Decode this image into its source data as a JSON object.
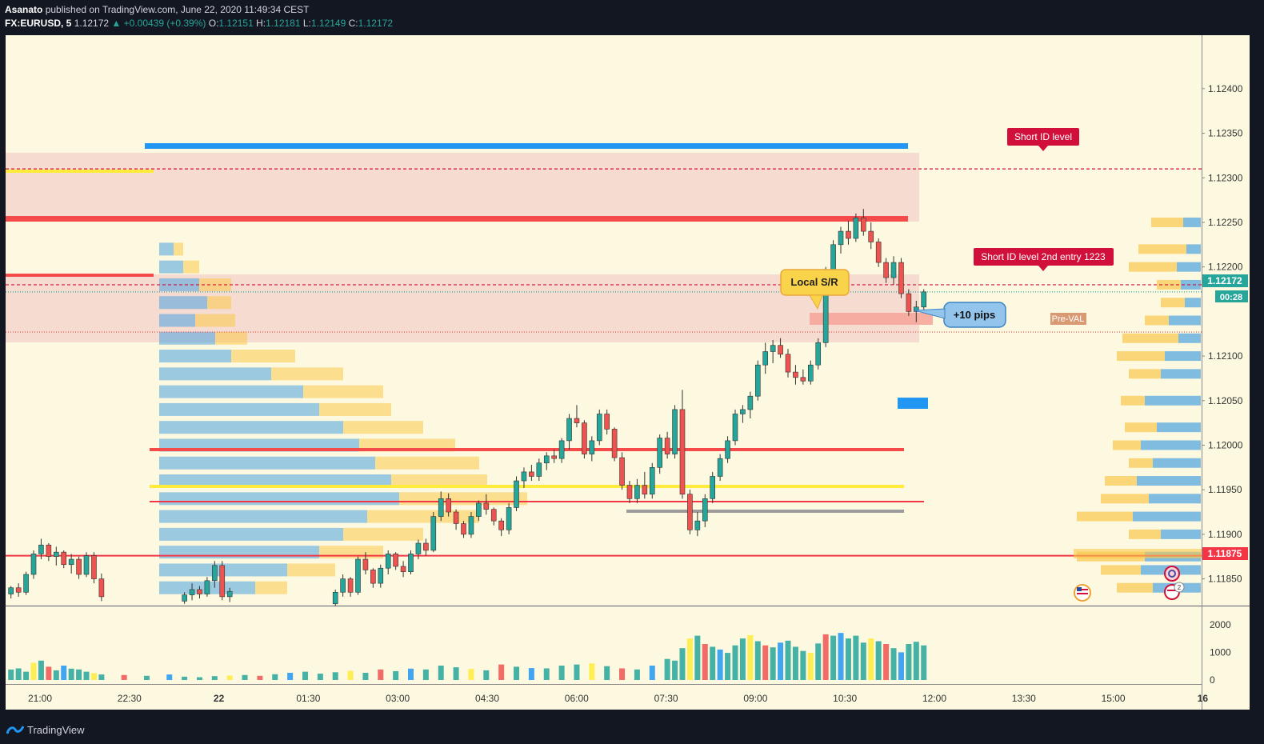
{
  "header": {
    "author": "Asanato",
    "published_text": "published on TradingView.com, June 22, 2020 11:49:34 CEST",
    "symbol": "FX:EURUSD, 5",
    "last": "1.12172",
    "change": "▲ +0.00439 (+0.39%)",
    "open_label": "O:",
    "open": "1.12151",
    "high_label": "H:",
    "high": "1.12181",
    "low_label": "L:",
    "low": "1.12149",
    "close_label": "C:",
    "close": "1.12172"
  },
  "footer": {
    "brand": "TradingView"
  },
  "colors": {
    "background": "#fdf9e0",
    "up": "#26a69a",
    "down": "#ef5350",
    "blue_line": "#2196f3",
    "red_line": "#f23645",
    "yellow_line": "#ffeb3b",
    "zone": "#f5d6cc",
    "label_red": "#d0103a",
    "callout_yellow": "#f9d34a",
    "callout_blue": "#93c5ec"
  },
  "chart_data": {
    "type": "candlestick",
    "symbol": "FX:EURUSD",
    "timeframe": "5",
    "x_ticks": [
      "21:00",
      "22:30",
      "22",
      "01:30",
      "03:00",
      "04:30",
      "06:00",
      "07:30",
      "09:00",
      "10:30",
      "12:00",
      "13:30",
      "15:00",
      "16"
    ],
    "y_ticks": [
      "1.12400",
      "1.12350",
      "1.12300",
      "1.12250",
      "1.12200",
      "1.12100",
      "1.12050",
      "1.12000",
      "1.11950",
      "1.11900",
      "1.11850"
    ],
    "ylim": [
      1.1182,
      1.1246
    ],
    "price_label": "1.12172",
    "countdown": "00:28",
    "level_label": "1.11875",
    "volume_ticks": [
      "2000",
      "1000",
      "0"
    ],
    "volume_ylim": [
      0,
      2600
    ],
    "levels": [
      {
        "price": 1.1231,
        "style": "dashed",
        "color": "#d0103a"
      },
      {
        "price": 1.1218,
        "style": "dashed",
        "color": "#d0103a"
      },
      {
        "price": 1.12172,
        "style": "dotted",
        "color": "#26a69a"
      },
      {
        "price": 1.12127,
        "style": "dotted",
        "color": "#ef5350"
      },
      {
        "price": 1.11876,
        "style": "solid",
        "color": "#f23645"
      }
    ],
    "annotations": [
      {
        "text": "Short ID level"
      },
      {
        "text": "Short ID level 2nd entry 1223"
      },
      {
        "text": "Local S/R"
      },
      {
        "text": "+10 pips"
      },
      {
        "text": "Pre-VAL"
      }
    ],
    "candles": [
      [
        0.5,
        1.11833,
        1.11842,
        1.11828,
        1.1184
      ],
      [
        1.5,
        1.1184,
        1.11845,
        1.1183,
        1.11835
      ],
      [
        2.5,
        1.11835,
        1.11858,
        1.11832,
        1.11855
      ],
      [
        3.5,
        1.11855,
        1.11882,
        1.1185,
        1.11878
      ],
      [
        4.5,
        1.11878,
        1.11895,
        1.11872,
        1.11888
      ],
      [
        5.5,
        1.11888,
        1.1189,
        1.1187,
        1.11875
      ],
      [
        6.5,
        1.11875,
        1.11886,
        1.11865,
        1.1188
      ],
      [
        7.5,
        1.1188,
        1.11882,
        1.11862,
        1.11866
      ],
      [
        8.5,
        1.11866,
        1.11878,
        1.11856,
        1.11872
      ],
      [
        9.5,
        1.11872,
        1.11875,
        1.1185,
        1.11855
      ],
      [
        10.5,
        1.11855,
        1.1188,
        1.11852,
        1.11876
      ],
      [
        11.5,
        1.11876,
        1.1188,
        1.11845,
        1.1185
      ],
      [
        12.5,
        1.1185,
        1.11856,
        1.11825,
        1.1183
      ],
      [
        23.5,
        1.11825,
        1.11835,
        1.11822,
        1.11832
      ],
      [
        24.5,
        1.11832,
        1.11845,
        1.11826,
        1.11838
      ],
      [
        25.5,
        1.11838,
        1.11842,
        1.11828,
        1.11833
      ],
      [
        26.5,
        1.11833,
        1.11852,
        1.1183,
        1.11848
      ],
      [
        27.5,
        1.11848,
        1.1187,
        1.1184,
        1.11865
      ],
      [
        28.5,
        1.11865,
        1.1187,
        1.11826,
        1.1183
      ],
      [
        29.5,
        1.1183,
        1.1184,
        1.11824,
        1.11836
      ],
      [
        43.5,
        1.11822,
        1.11838,
        1.1182,
        1.11835
      ],
      [
        44.5,
        1.11835,
        1.11855,
        1.1183,
        1.1185
      ],
      [
        45.5,
        1.1185,
        1.11852,
        1.1183,
        1.11835
      ],
      [
        46.5,
        1.11835,
        1.11875,
        1.11832,
        1.11872
      ],
      [
        47.5,
        1.11872,
        1.1188,
        1.11855,
        1.1186
      ],
      [
        48.5,
        1.1186,
        1.11862,
        1.1184,
        1.11845
      ],
      [
        49.5,
        1.11845,
        1.11866,
        1.1184,
        1.11862
      ],
      [
        50.5,
        1.11862,
        1.11882,
        1.11855,
        1.11878
      ],
      [
        51.5,
        1.11878,
        1.1188,
        1.1186,
        1.11864
      ],
      [
        52.5,
        1.11864,
        1.1187,
        1.11852,
        1.11858
      ],
      [
        53.5,
        1.11858,
        1.11882,
        1.11855,
        1.11878
      ],
      [
        54.5,
        1.11878,
        1.11894,
        1.11872,
        1.1189
      ],
      [
        55.5,
        1.1189,
        1.11895,
        1.11876,
        1.11882
      ],
      [
        56.5,
        1.11882,
        1.11925,
        1.1188,
        1.1192
      ],
      [
        57.5,
        1.1192,
        1.11948,
        1.11915,
        1.1194
      ],
      [
        58.5,
        1.1194,
        1.11946,
        1.1192,
        1.11925
      ],
      [
        59.5,
        1.11925,
        1.11928,
        1.11905,
        1.11912
      ],
      [
        60.5,
        1.11912,
        1.11915,
        1.11896,
        1.119
      ],
      [
        61.5,
        1.119,
        1.11925,
        1.11896,
        1.1192
      ],
      [
        62.5,
        1.1192,
        1.11938,
        1.11915,
        1.11935
      ],
      [
        63.5,
        1.11935,
        1.11945,
        1.11922,
        1.11928
      ],
      [
        64.5,
        1.11928,
        1.1193,
        1.1191,
        1.11915
      ],
      [
        65.5,
        1.11915,
        1.11918,
        1.11898,
        1.11905
      ],
      [
        66.5,
        1.11905,
        1.11935,
        1.119,
        1.1193
      ],
      [
        67.5,
        1.1193,
        1.11965,
        1.11926,
        1.1196
      ],
      [
        68.5,
        1.1196,
        1.11975,
        1.11952,
        1.1197
      ],
      [
        69.5,
        1.1197,
        1.11978,
        1.1196,
        1.11965
      ],
      [
        70.5,
        1.11965,
        1.11985,
        1.1196,
        1.1198
      ],
      [
        71.5,
        1.1198,
        1.11992,
        1.11972,
        1.11988
      ],
      [
        72.5,
        1.11988,
        1.11995,
        1.1198,
        1.11985
      ],
      [
        73.5,
        1.11985,
        1.12008,
        1.1198,
        1.12005
      ],
      [
        74.5,
        1.12005,
        1.12035,
        1.11995,
        1.1203
      ],
      [
        75.5,
        1.1203,
        1.12045,
        1.1202,
        1.12025
      ],
      [
        76.5,
        1.12025,
        1.12028,
        1.11985,
        1.1199
      ],
      [
        77.5,
        1.1199,
        1.1201,
        1.11982,
        1.12005
      ],
      [
        78.5,
        1.12005,
        1.1204,
        1.12,
        1.12035
      ],
      [
        79.5,
        1.12035,
        1.1204,
        1.12012,
        1.12018
      ],
      [
        80.5,
        1.12018,
        1.1202,
        1.11982,
        1.11986
      ],
      [
        81.5,
        1.11986,
        1.11992,
        1.1195,
        1.11955
      ],
      [
        82.5,
        1.11955,
        1.1196,
        1.11935,
        1.1194
      ],
      [
        83.5,
        1.1194,
        1.11962,
        1.11935,
        1.11955
      ],
      [
        84.5,
        1.11955,
        1.1197,
        1.1194,
        1.11945
      ],
      [
        85.5,
        1.11945,
        1.1198,
        1.1194,
        1.11975
      ],
      [
        86.5,
        1.11975,
        1.12012,
        1.11968,
        1.12008
      ],
      [
        87.5,
        1.12008,
        1.12015,
        1.11985,
        1.1199
      ],
      [
        88.5,
        1.1199,
        1.12045,
        1.11985,
        1.1204
      ],
      [
        89.5,
        1.1204,
        1.12062,
        1.1194,
        1.11945
      ],
      [
        90.5,
        1.11945,
        1.1195,
        1.119,
        1.11905
      ],
      [
        91.5,
        1.11905,
        1.11925,
        1.11898,
        1.11915
      ],
      [
        92.5,
        1.11915,
        1.11945,
        1.11908,
        1.1194
      ],
      [
        93.5,
        1.1194,
        1.1197,
        1.11935,
        1.11965
      ],
      [
        94.5,
        1.11965,
        1.1199,
        1.1196,
        1.11985
      ],
      [
        95.5,
        1.11985,
        1.1201,
        1.1198,
        1.12005
      ],
      [
        96.5,
        1.12005,
        1.1204,
        1.12,
        1.12035
      ],
      [
        97.5,
        1.12035,
        1.12045,
        1.12025,
        1.1204
      ],
      [
        98.5,
        1.1204,
        1.1206,
        1.1203,
        1.12055
      ],
      [
        99.5,
        1.12055,
        1.12095,
        1.1205,
        1.1209
      ],
      [
        100.5,
        1.1209,
        1.12115,
        1.1208,
        1.12105
      ],
      [
        101.5,
        1.12105,
        1.12118,
        1.12092,
        1.12112
      ],
      [
        102.5,
        1.12112,
        1.1212,
        1.12098,
        1.12102
      ],
      [
        103.5,
        1.12102,
        1.12108,
        1.12076,
        1.12082
      ],
      [
        104.5,
        1.12082,
        1.1209,
        1.12068,
        1.12076
      ],
      [
        105.5,
        1.12076,
        1.12085,
        1.12068,
        1.12072
      ],
      [
        106.5,
        1.12072,
        1.12095,
        1.12068,
        1.1209
      ],
      [
        107.5,
        1.1209,
        1.1212,
        1.12085,
        1.12115
      ],
      [
        108.5,
        1.12115,
        1.122,
        1.1211,
        1.12195
      ],
      [
        109.5,
        1.12195,
        1.1223,
        1.12185,
        1.12225
      ],
      [
        110.5,
        1.12225,
        1.12245,
        1.12215,
        1.1224
      ],
      [
        111.5,
        1.1224,
        1.12252,
        1.12225,
        1.12232
      ],
      [
        112.5,
        1.12232,
        1.1226,
        1.12228,
        1.12255
      ],
      [
        113.5,
        1.12255,
        1.12265,
        1.12235,
        1.1224
      ],
      [
        114.5,
        1.1224,
        1.1225,
        1.1222,
        1.12228
      ],
      [
        115.5,
        1.12228,
        1.12232,
        1.122,
        1.12205
      ],
      [
        116.5,
        1.12205,
        1.1221,
        1.12182,
        1.12188
      ],
      [
        117.5,
        1.12188,
        1.12212,
        1.1218,
        1.12205
      ],
      [
        118.5,
        1.12205,
        1.1221,
        1.12165,
        1.1217
      ],
      [
        119.5,
        1.1217,
        1.12175,
        1.12145,
        1.1215
      ],
      [
        120.5,
        1.1215,
        1.12162,
        1.12138,
        1.12155
      ],
      [
        121.5,
        1.12155,
        1.12175,
        1.1215,
        1.12172
      ]
    ],
    "volume": [
      [
        0.5,
        380
      ],
      [
        1.5,
        420
      ],
      [
        2.5,
        300
      ],
      [
        3.5,
        620
      ],
      [
        4.5,
        700
      ],
      [
        5.5,
        480
      ],
      [
        6.5,
        350
      ],
      [
        7.5,
        520
      ],
      [
        8.5,
        410
      ],
      [
        9.5,
        380
      ],
      [
        10.5,
        300
      ],
      [
        11.5,
        250
      ],
      [
        12.5,
        200
      ],
      [
        15.5,
        180
      ],
      [
        18.5,
        150
      ],
      [
        21.5,
        200
      ],
      [
        23.5,
        120
      ],
      [
        25.5,
        100
      ],
      [
        27.5,
        140
      ],
      [
        29.5,
        160
      ],
      [
        31.5,
        180
      ],
      [
        33.5,
        150
      ],
      [
        35.5,
        210
      ],
      [
        37.5,
        260
      ],
      [
        39.5,
        300
      ],
      [
        41.5,
        230
      ],
      [
        43.5,
        280
      ],
      [
        45.5,
        330
      ],
      [
        47.5,
        260
      ],
      [
        49.5,
        380
      ],
      [
        51.5,
        320
      ],
      [
        53.5,
        410
      ],
      [
        55.5,
        380
      ],
      [
        57.5,
        520
      ],
      [
        59.5,
        460
      ],
      [
        61.5,
        400
      ],
      [
        63.5,
        350
      ],
      [
        65.5,
        560
      ],
      [
        67.5,
        480
      ],
      [
        69.5,
        430
      ],
      [
        71.5,
        420
      ],
      [
        73.5,
        520
      ],
      [
        75.5,
        560
      ],
      [
        77.5,
        600
      ],
      [
        79.5,
        500
      ],
      [
        81.5,
        420
      ],
      [
        83.5,
        380
      ],
      [
        85.5,
        520
      ],
      [
        87.5,
        760
      ],
      [
        88.5,
        700
      ],
      [
        89.5,
        1150
      ],
      [
        90.5,
        1500
      ],
      [
        91.5,
        1600
      ],
      [
        92.5,
        1300
      ],
      [
        93.5,
        1200
      ],
      [
        94.5,
        1100
      ],
      [
        95.5,
        980
      ],
      [
        96.5,
        1250
      ],
      [
        97.5,
        1500
      ],
      [
        98.5,
        1620
      ],
      [
        99.5,
        1400
      ],
      [
        100.5,
        1250
      ],
      [
        101.5,
        1180
      ],
      [
        102.5,
        1350
      ],
      [
        103.5,
        1420
      ],
      [
        104.5,
        1200
      ],
      [
        105.5,
        1050
      ],
      [
        106.5,
        980
      ],
      [
        107.5,
        1320
      ],
      [
        108.5,
        1650
      ],
      [
        109.5,
        1600
      ],
      [
        110.5,
        1700
      ],
      [
        111.5,
        1500
      ],
      [
        112.5,
        1600
      ],
      [
        113.5,
        1350
      ],
      [
        114.5,
        1500
      ],
      [
        115.5,
        1400
      ],
      [
        116.5,
        1300
      ],
      [
        117.5,
        1150
      ],
      [
        118.5,
        1000
      ],
      [
        119.5,
        1300
      ],
      [
        120.5,
        1380
      ],
      [
        121.5,
        1250
      ]
    ],
    "volume_profile_left": [
      [
        1.1222,
        18,
        12
      ],
      [
        1.122,
        30,
        20
      ],
      [
        1.1218,
        50,
        40
      ],
      [
        1.1216,
        60,
        30
      ],
      [
        1.1214,
        45,
        50
      ],
      [
        1.1212,
        70,
        40
      ],
      [
        1.121,
        90,
        80
      ],
      [
        1.1208,
        140,
        90
      ],
      [
        1.1206,
        180,
        100
      ],
      [
        1.1204,
        200,
        90
      ],
      [
        1.1202,
        230,
        100
      ],
      [
        1.12,
        250,
        120
      ],
      [
        1.1198,
        270,
        130
      ],
      [
        1.1196,
        290,
        120
      ],
      [
        1.1194,
        300,
        160
      ],
      [
        1.1192,
        260,
        140
      ],
      [
        1.119,
        230,
        100
      ],
      [
        1.1188,
        200,
        80
      ],
      [
        1.1186,
        160,
        60
      ],
      [
        1.1184,
        120,
        40
      ]
    ],
    "volume_profile_right": [
      [
        1.1225,
        22,
        40
      ],
      [
        1.1222,
        18,
        60
      ],
      [
        1.122,
        30,
        60
      ],
      [
        1.1218,
        25,
        30
      ],
      [
        1.1216,
        20,
        30
      ],
      [
        1.1214,
        40,
        30
      ],
      [
        1.1212,
        28,
        70
      ],
      [
        1.121,
        45,
        60
      ],
      [
        1.1208,
        50,
        40
      ],
      [
        1.1205,
        70,
        30
      ],
      [
        1.1202,
        55,
        40
      ],
      [
        1.12,
        75,
        35
      ],
      [
        1.1198,
        60,
        30
      ],
      [
        1.1196,
        80,
        40
      ],
      [
        1.1194,
        65,
        60
      ],
      [
        1.1192,
        85,
        70
      ],
      [
        1.119,
        50,
        40
      ],
      [
        1.11875,
        70,
        85
      ],
      [
        1.1186,
        75,
        50
      ],
      [
        1.1184,
        60,
        45
      ]
    ]
  }
}
